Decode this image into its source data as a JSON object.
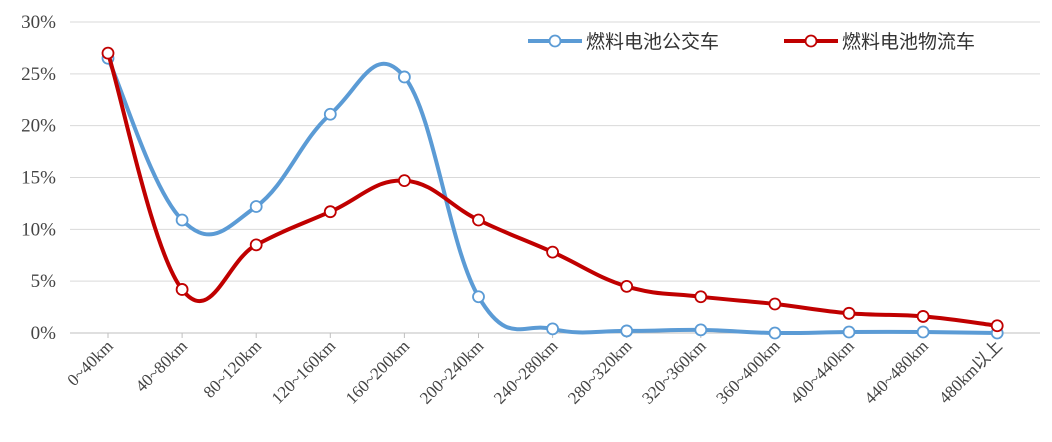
{
  "chart_data": {
    "type": "line",
    "smooth": true,
    "title": "",
    "xlabel": "",
    "ylabel": "",
    "categories": [
      "0~40km",
      "40~80km",
      "80~120km",
      "120~160km",
      "160~200km",
      "200~240km",
      "240~280km",
      "280~320km",
      "320~360km",
      "360~400km",
      "400~440km",
      "440~480km",
      "480km以上"
    ],
    "ylim": [
      0,
      30
    ],
    "yticks": [
      0,
      5,
      10,
      15,
      20,
      25,
      30
    ],
    "ytick_labels": [
      "0%",
      "5%",
      "10%",
      "15%",
      "20%",
      "25%",
      "30%"
    ],
    "grid": "horizontal",
    "legend_position": "top-right",
    "series": [
      {
        "name": "燃料电池公交车",
        "color": "#5b9bd5",
        "values": [
          26.5,
          10.9,
          12.2,
          21.1,
          24.7,
          3.5,
          0.4,
          0.2,
          0.3,
          0.0,
          0.1,
          0.1,
          0.0
        ]
      },
      {
        "name": "燃料电池物流车",
        "color": "#c00000",
        "values": [
          27.0,
          4.2,
          8.5,
          11.7,
          14.7,
          10.9,
          7.8,
          4.5,
          3.5,
          2.8,
          1.9,
          1.6,
          0.7
        ]
      }
    ]
  }
}
